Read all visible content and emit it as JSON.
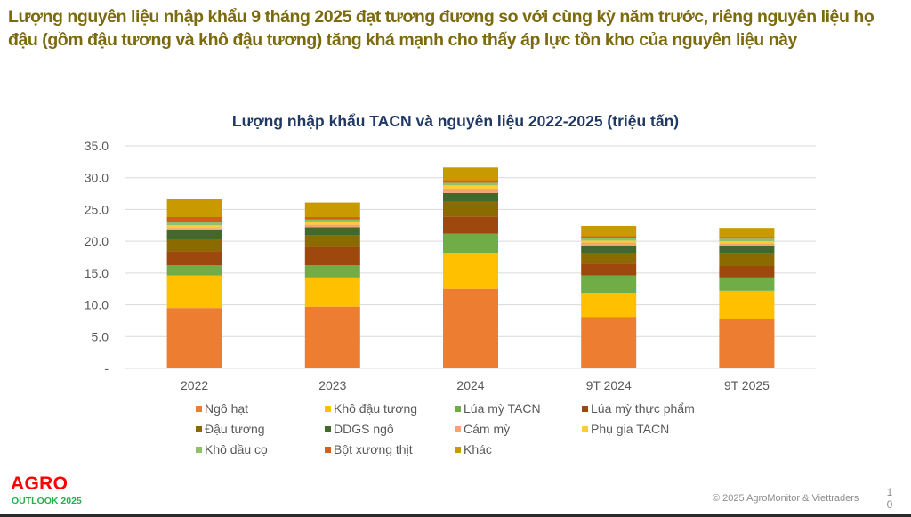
{
  "headline": "Lượng nguyên liệu nhập khẩu 9 tháng 2025 đạt tương đương so với cùng kỳ năm trước, riêng nguyên liệu họ đậu (gồm đậu tương và khô đậu tương) tăng khá mạnh cho thấy áp lực tồn kho của nguyên liệu này",
  "footer": {
    "logo_line1": "AGRO",
    "logo_line2": "OUTLOOK 2025",
    "copyright": "© 2025 AgroMonitor & Viettraders",
    "page_number": "10"
  },
  "colors": {
    "headline": "#7B6A0E",
    "chart_title": "#1F3864",
    "logo_red": "#FF0000",
    "logo_green": "#22B14C"
  },
  "chart_data": {
    "type": "bar",
    "stacked": true,
    "title": "Lượng nhập khẩu TACN và nguyên liệu 2022-2025 (triệu tấn)",
    "xlabel": "",
    "ylabel": "",
    "ylim": [
      0,
      35
    ],
    "yticks": [
      0,
      5,
      10,
      15,
      20,
      25,
      30,
      35
    ],
    "ytick_labels": [
      "-",
      "5.0",
      "10.0",
      "15.0",
      "20.0",
      "25.0",
      "30.0",
      "35.0"
    ],
    "grid": true,
    "legend_position": "bottom",
    "categories": [
      "2022",
      "2023",
      "2024",
      "9T 2024",
      "9T 2025"
    ],
    "series": [
      {
        "name": "Ngô hạt",
        "color": "#ED7D31",
        "values": [
          9.5,
          9.7,
          12.5,
          8.1,
          7.7
        ]
      },
      {
        "name": "Khô đậu tương",
        "color": "#FFC000",
        "values": [
          5.1,
          4.6,
          5.7,
          3.8,
          4.5
        ]
      },
      {
        "name": "Lúa mỳ TACN",
        "color": "#70AD47",
        "values": [
          1.6,
          1.9,
          3.0,
          2.7,
          2.1
        ]
      },
      {
        "name": "Lúa mỳ thực phẩm",
        "color": "#9E480E",
        "values": [
          2.2,
          2.9,
          2.7,
          1.9,
          1.8
        ]
      },
      {
        "name": "Đậu tương",
        "color": "#8B6B00",
        "values": [
          1.9,
          1.8,
          2.3,
          1.7,
          2.0
        ]
      },
      {
        "name": "DDGS ngô",
        "color": "#43682B",
        "values": [
          1.4,
          1.3,
          1.4,
          1.0,
          1.1
        ]
      },
      {
        "name": "Cám mỳ",
        "color": "#F4A46E",
        "values": [
          0.4,
          0.4,
          0.7,
          0.6,
          0.5
        ]
      },
      {
        "name": "Phụ gia TACN",
        "color": "#FFCD33",
        "values": [
          0.4,
          0.4,
          0.5,
          0.3,
          0.3
        ]
      },
      {
        "name": "Khô dầu cọ",
        "color": "#8FC16C",
        "values": [
          0.6,
          0.4,
          0.4,
          0.4,
          0.4
        ]
      },
      {
        "name": "Bột xương thịt",
        "color": "#D2601A",
        "values": [
          0.7,
          0.4,
          0.4,
          0.3,
          0.3
        ]
      },
      {
        "name": "Khác",
        "color": "#C99A00",
        "values": [
          2.8,
          2.3,
          2.0,
          1.6,
          1.4
        ]
      }
    ]
  }
}
